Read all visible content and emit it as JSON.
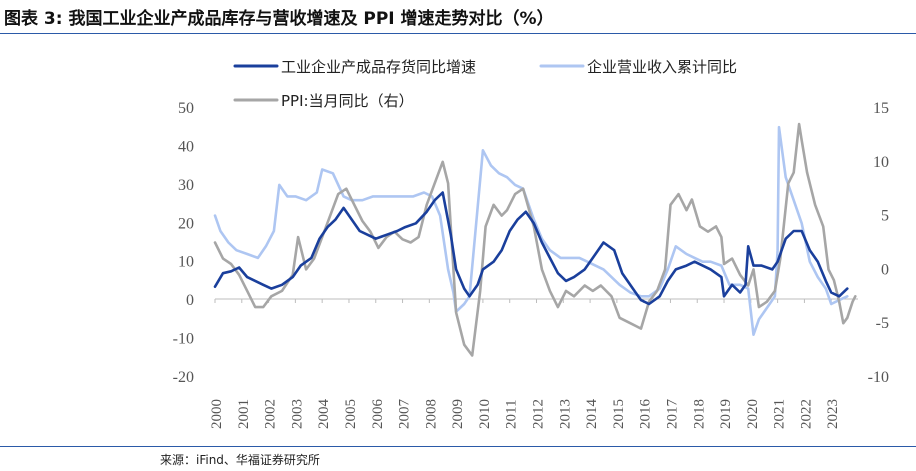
{
  "title": "图表 3:  我国工业企业产成品库存与营收增速及 PPI 增速走势对比（%）",
  "source": "来源：iFind、华福证券研究所",
  "chart_data": {
    "type": "line",
    "legend": [
      "工业企业产成品存货同比增速",
      "企业营业收入累计同比",
      "PPI:当月同比（右）"
    ],
    "left_axis": {
      "range": [
        -20,
        50
      ],
      "ticks": [
        50,
        40,
        30,
        20,
        10,
        0,
        -10,
        -20
      ]
    },
    "right_axis": {
      "range": [
        -10,
        15
      ],
      "ticks": [
        15,
        10,
        5,
        0,
        -5,
        -10
      ]
    },
    "x_ticks": [
      "2000",
      "2001",
      "2002",
      "2003",
      "2004",
      "2005",
      "2006",
      "2007",
      "2008",
      "2009",
      "2010",
      "2011",
      "2012",
      "2013",
      "2014",
      "2015",
      "2016",
      "2017",
      "2018",
      "2019",
      "2020",
      "2021",
      "2022",
      "2023"
    ],
    "colors": {
      "inventory": "#1a3f9c",
      "revenue": "#aec6f2",
      "ppi": "#a6a6a6"
    },
    "series": [
      {
        "name": "工业企业产成品存货同比增速",
        "axis": "left",
        "points": [
          [
            2000.0,
            3.5
          ],
          [
            2000.3,
            7
          ],
          [
            2000.6,
            7.5
          ],
          [
            2000.9,
            8.5
          ],
          [
            2001.2,
            6
          ],
          [
            2001.5,
            5
          ],
          [
            2001.8,
            4
          ],
          [
            2002.1,
            3
          ],
          [
            2002.5,
            4
          ],
          [
            2002.9,
            6
          ],
          [
            2003.2,
            9
          ],
          [
            2003.6,
            11
          ],
          [
            2003.9,
            16
          ],
          [
            2004.2,
            19
          ],
          [
            2004.5,
            21
          ],
          [
            2004.8,
            24
          ],
          [
            2005.1,
            21
          ],
          [
            2005.4,
            18
          ],
          [
            2005.7,
            17
          ],
          [
            2006.0,
            16
          ],
          [
            2006.4,
            17
          ],
          [
            2006.8,
            18
          ],
          [
            2007.1,
            19
          ],
          [
            2007.5,
            20
          ],
          [
            2007.9,
            23
          ],
          [
            2008.2,
            26
          ],
          [
            2008.5,
            28
          ],
          [
            2008.8,
            17
          ],
          [
            2009.0,
            8
          ],
          [
            2009.3,
            3
          ],
          [
            2009.5,
            1
          ],
          [
            2009.8,
            4
          ],
          [
            2010.0,
            8
          ],
          [
            2010.4,
            10
          ],
          [
            2010.7,
            13
          ],
          [
            2011.0,
            18
          ],
          [
            2011.3,
            21
          ],
          [
            2011.6,
            23
          ],
          [
            2011.9,
            20
          ],
          [
            2012.2,
            15
          ],
          [
            2012.5,
            11
          ],
          [
            2012.8,
            7
          ],
          [
            2013.1,
            5
          ],
          [
            2013.4,
            6
          ],
          [
            2013.8,
            8
          ],
          [
            2014.1,
            11
          ],
          [
            2014.5,
            15
          ],
          [
            2014.9,
            13
          ],
          [
            2015.2,
            7
          ],
          [
            2015.6,
            3
          ],
          [
            2015.9,
            0
          ],
          [
            2016.2,
            -1
          ],
          [
            2016.6,
            1
          ],
          [
            2016.9,
            5
          ],
          [
            2017.2,
            8
          ],
          [
            2017.6,
            9
          ],
          [
            2017.9,
            10
          ],
          [
            2018.2,
            9
          ],
          [
            2018.5,
            8
          ],
          [
            2018.9,
            6
          ],
          [
            2019.0,
            1
          ],
          [
            2019.3,
            4
          ],
          [
            2019.6,
            2
          ],
          [
            2019.8,
            4
          ],
          [
            2019.9,
            14
          ],
          [
            2020.1,
            9
          ],
          [
            2020.4,
            9
          ],
          [
            2020.8,
            8
          ],
          [
            2021.0,
            10
          ],
          [
            2021.3,
            16
          ],
          [
            2021.6,
            18
          ],
          [
            2021.9,
            18
          ],
          [
            2022.2,
            13
          ],
          [
            2022.5,
            10
          ],
          [
            2022.8,
            5
          ],
          [
            2023.0,
            2
          ],
          [
            2023.3,
            1
          ],
          [
            2023.6,
            3
          ]
        ]
      },
      {
        "name": "企业营业收入累计同比",
        "axis": "left",
        "points": [
          [
            2000.0,
            22
          ],
          [
            2000.2,
            18
          ],
          [
            2000.5,
            15
          ],
          [
            2000.8,
            13
          ],
          [
            2001.2,
            12
          ],
          [
            2001.6,
            11
          ],
          [
            2001.9,
            14
          ],
          [
            2002.2,
            18
          ],
          [
            2002.4,
            30
          ],
          [
            2002.7,
            27
          ],
          [
            2003.0,
            27
          ],
          [
            2003.4,
            26
          ],
          [
            2003.8,
            28
          ],
          [
            2004.0,
            34
          ],
          [
            2004.4,
            33
          ],
          [
            2004.8,
            27
          ],
          [
            2005.1,
            26
          ],
          [
            2005.5,
            26
          ],
          [
            2005.9,
            27
          ],
          [
            2006.2,
            27
          ],
          [
            2006.6,
            27
          ],
          [
            2007.0,
            27
          ],
          [
            2007.4,
            27
          ],
          [
            2007.8,
            28
          ],
          [
            2008.1,
            27
          ],
          [
            2008.4,
            22
          ],
          [
            2008.7,
            8
          ],
          [
            2008.9,
            2
          ],
          [
            2009.0,
            -3
          ],
          [
            2009.3,
            -1
          ],
          [
            2009.5,
            1
          ],
          [
            2009.8,
            24
          ],
          [
            2010.0,
            39
          ],
          [
            2010.3,
            35
          ],
          [
            2010.6,
            33
          ],
          [
            2010.9,
            32
          ],
          [
            2011.2,
            30
          ],
          [
            2011.5,
            29
          ],
          [
            2011.9,
            21
          ],
          [
            2012.2,
            16
          ],
          [
            2012.5,
            13
          ],
          [
            2012.9,
            11
          ],
          [
            2013.2,
            11
          ],
          [
            2013.6,
            11
          ],
          [
            2013.9,
            10
          ],
          [
            2014.2,
            9
          ],
          [
            2014.5,
            8
          ],
          [
            2014.8,
            6
          ],
          [
            2015.1,
            4
          ],
          [
            2015.5,
            2
          ],
          [
            2015.9,
            1
          ],
          [
            2016.2,
            1
          ],
          [
            2016.6,
            3
          ],
          [
            2016.9,
            8
          ],
          [
            2017.2,
            14
          ],
          [
            2017.6,
            12
          ],
          [
            2017.9,
            11
          ],
          [
            2018.2,
            10
          ],
          [
            2018.5,
            10
          ],
          [
            2018.9,
            9
          ],
          [
            2019.2,
            4
          ],
          [
            2019.6,
            4
          ],
          [
            2019.9,
            3
          ],
          [
            2020.1,
            -9
          ],
          [
            2020.3,
            -5
          ],
          [
            2020.7,
            -1
          ],
          [
            2020.9,
            1
          ],
          [
            2021.0,
            13
          ],
          [
            2021.05,
            45
          ],
          [
            2021.3,
            32
          ],
          [
            2021.6,
            26
          ],
          [
            2021.9,
            20
          ],
          [
            2022.2,
            10
          ],
          [
            2022.5,
            6
          ],
          [
            2022.8,
            3
          ],
          [
            2023.0,
            -1
          ],
          [
            2023.3,
            0
          ],
          [
            2023.6,
            1
          ]
        ]
      },
      {
        "name": "PPI:当月同比（右）",
        "axis": "right",
        "points": [
          [
            2000.0,
            2.5
          ],
          [
            2000.3,
            1
          ],
          [
            2000.6,
            0.5
          ],
          [
            2000.9,
            -0.5
          ],
          [
            2001.2,
            -2
          ],
          [
            2001.5,
            -3.5
          ],
          [
            2001.8,
            -3.5
          ],
          [
            2002.1,
            -2.5
          ],
          [
            2002.5,
            -2
          ],
          [
            2002.9,
            -0.5
          ],
          [
            2003.1,
            3
          ],
          [
            2003.4,
            0
          ],
          [
            2003.7,
            1
          ],
          [
            2004.0,
            3
          ],
          [
            2004.3,
            5
          ],
          [
            2004.6,
            7
          ],
          [
            2004.9,
            7.5
          ],
          [
            2005.2,
            6
          ],
          [
            2005.5,
            4.5
          ],
          [
            2005.8,
            3.5
          ],
          [
            2006.1,
            2
          ],
          [
            2006.4,
            3
          ],
          [
            2006.7,
            3.5
          ],
          [
            2007.0,
            2.8
          ],
          [
            2007.3,
            2.5
          ],
          [
            2007.6,
            3
          ],
          [
            2007.9,
            6
          ],
          [
            2008.2,
            8
          ],
          [
            2008.5,
            10
          ],
          [
            2008.7,
            8
          ],
          [
            2008.85,
            2
          ],
          [
            2009.0,
            -4
          ],
          [
            2009.3,
            -7
          ],
          [
            2009.6,
            -8
          ],
          [
            2009.9,
            -2
          ],
          [
            2010.1,
            4
          ],
          [
            2010.4,
            6
          ],
          [
            2010.7,
            5
          ],
          [
            2010.9,
            5.5
          ],
          [
            2011.2,
            7
          ],
          [
            2011.5,
            7.5
          ],
          [
            2011.9,
            4
          ],
          [
            2012.2,
            0
          ],
          [
            2012.5,
            -2
          ],
          [
            2012.8,
            -3.5
          ],
          [
            2013.1,
            -2
          ],
          [
            2013.4,
            -2.5
          ],
          [
            2013.8,
            -1.5
          ],
          [
            2014.1,
            -2
          ],
          [
            2014.4,
            -1.5
          ],
          [
            2014.8,
            -2.5
          ],
          [
            2015.1,
            -4.5
          ],
          [
            2015.5,
            -5
          ],
          [
            2015.9,
            -5.5
          ],
          [
            2016.2,
            -3
          ],
          [
            2016.5,
            -2
          ],
          [
            2016.8,
            0
          ],
          [
            2017.0,
            6
          ],
          [
            2017.3,
            7
          ],
          [
            2017.6,
            5.5
          ],
          [
            2017.8,
            6.5
          ],
          [
            2018.1,
            4
          ],
          [
            2018.4,
            3.5
          ],
          [
            2018.7,
            4
          ],
          [
            2018.9,
            3
          ],
          [
            2019.0,
            0.5
          ],
          [
            2019.3,
            1
          ],
          [
            2019.6,
            -0.5
          ],
          [
            2019.9,
            -1.5
          ],
          [
            2020.1,
            0
          ],
          [
            2020.3,
            -3.5
          ],
          [
            2020.6,
            -3
          ],
          [
            2020.9,
            -2
          ],
          [
            2021.1,
            1
          ],
          [
            2021.4,
            8
          ],
          [
            2021.6,
            9
          ],
          [
            2021.8,
            13.5
          ],
          [
            2021.9,
            12
          ],
          [
            2022.1,
            9
          ],
          [
            2022.4,
            6
          ],
          [
            2022.7,
            4
          ],
          [
            2022.9,
            0
          ],
          [
            2023.1,
            -1
          ],
          [
            2023.3,
            -3
          ],
          [
            2023.45,
            -5
          ],
          [
            2023.6,
            -4.5
          ],
          [
            2023.8,
            -3
          ],
          [
            2023.9,
            -2.5
          ]
        ]
      }
    ]
  }
}
